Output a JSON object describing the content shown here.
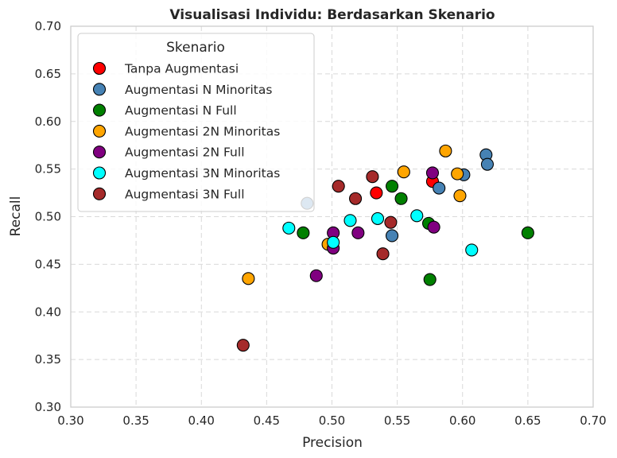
{
  "chart_data": {
    "type": "scatter",
    "title": "Visualisasi Individu: Berdasarkan Skenario",
    "xlabel": "Precision",
    "ylabel": "Recall",
    "xlim": [
      0.3,
      0.7
    ],
    "ylim": [
      0.3,
      0.7
    ],
    "xticks": [
      "0.30",
      "0.35",
      "0.40",
      "0.45",
      "0.50",
      "0.55",
      "0.60",
      "0.65",
      "0.70"
    ],
    "yticks": [
      "0.30",
      "0.35",
      "0.40",
      "0.45",
      "0.50",
      "0.55",
      "0.60",
      "0.65",
      "0.70"
    ],
    "grid": true,
    "legend": {
      "title": "Skenario",
      "placement": "top-left"
    },
    "series": [
      {
        "name": "Tanpa Augmentasi",
        "color": "#ff0000",
        "points": [
          [
            0.534,
            0.525
          ],
          [
            0.577,
            0.537
          ]
        ]
      },
      {
        "name": "Augmentasi N Minoritas",
        "color": "#4682b4",
        "points": [
          [
            0.481,
            0.514
          ],
          [
            0.546,
            0.48
          ],
          [
            0.582,
            0.53
          ],
          [
            0.601,
            0.544
          ],
          [
            0.618,
            0.565
          ],
          [
            0.619,
            0.555
          ]
        ]
      },
      {
        "name": "Augmentasi N Full",
        "color": "#008000",
        "points": [
          [
            0.478,
            0.483
          ],
          [
            0.546,
            0.532
          ],
          [
            0.553,
            0.519
          ],
          [
            0.574,
            0.493
          ],
          [
            0.575,
            0.434
          ],
          [
            0.65,
            0.483
          ]
        ]
      },
      {
        "name": "Augmentasi 2N Minoritas",
        "color": "#ffa500",
        "points": [
          [
            0.436,
            0.435
          ],
          [
            0.497,
            0.471
          ],
          [
            0.555,
            0.547
          ],
          [
            0.587,
            0.569
          ],
          [
            0.596,
            0.545
          ],
          [
            0.598,
            0.522
          ]
        ]
      },
      {
        "name": "Augmentasi 2N Full",
        "color": "#800080",
        "points": [
          [
            0.488,
            0.438
          ],
          [
            0.501,
            0.467
          ],
          [
            0.501,
            0.483
          ],
          [
            0.52,
            0.483
          ],
          [
            0.577,
            0.546
          ],
          [
            0.578,
            0.489
          ]
        ]
      },
      {
        "name": "Augmentasi 3N Minoritas",
        "color": "#00ffff",
        "points": [
          [
            0.467,
            0.488
          ],
          [
            0.501,
            0.473
          ],
          [
            0.514,
            0.496
          ],
          [
            0.535,
            0.498
          ],
          [
            0.565,
            0.501
          ],
          [
            0.607,
            0.465
          ]
        ]
      },
      {
        "name": "Augmentasi 3N Full",
        "color": "#a52a2a",
        "points": [
          [
            0.432,
            0.365
          ],
          [
            0.505,
            0.532
          ],
          [
            0.518,
            0.519
          ],
          [
            0.531,
            0.542
          ],
          [
            0.539,
            0.461
          ],
          [
            0.545,
            0.494
          ]
        ]
      }
    ]
  }
}
